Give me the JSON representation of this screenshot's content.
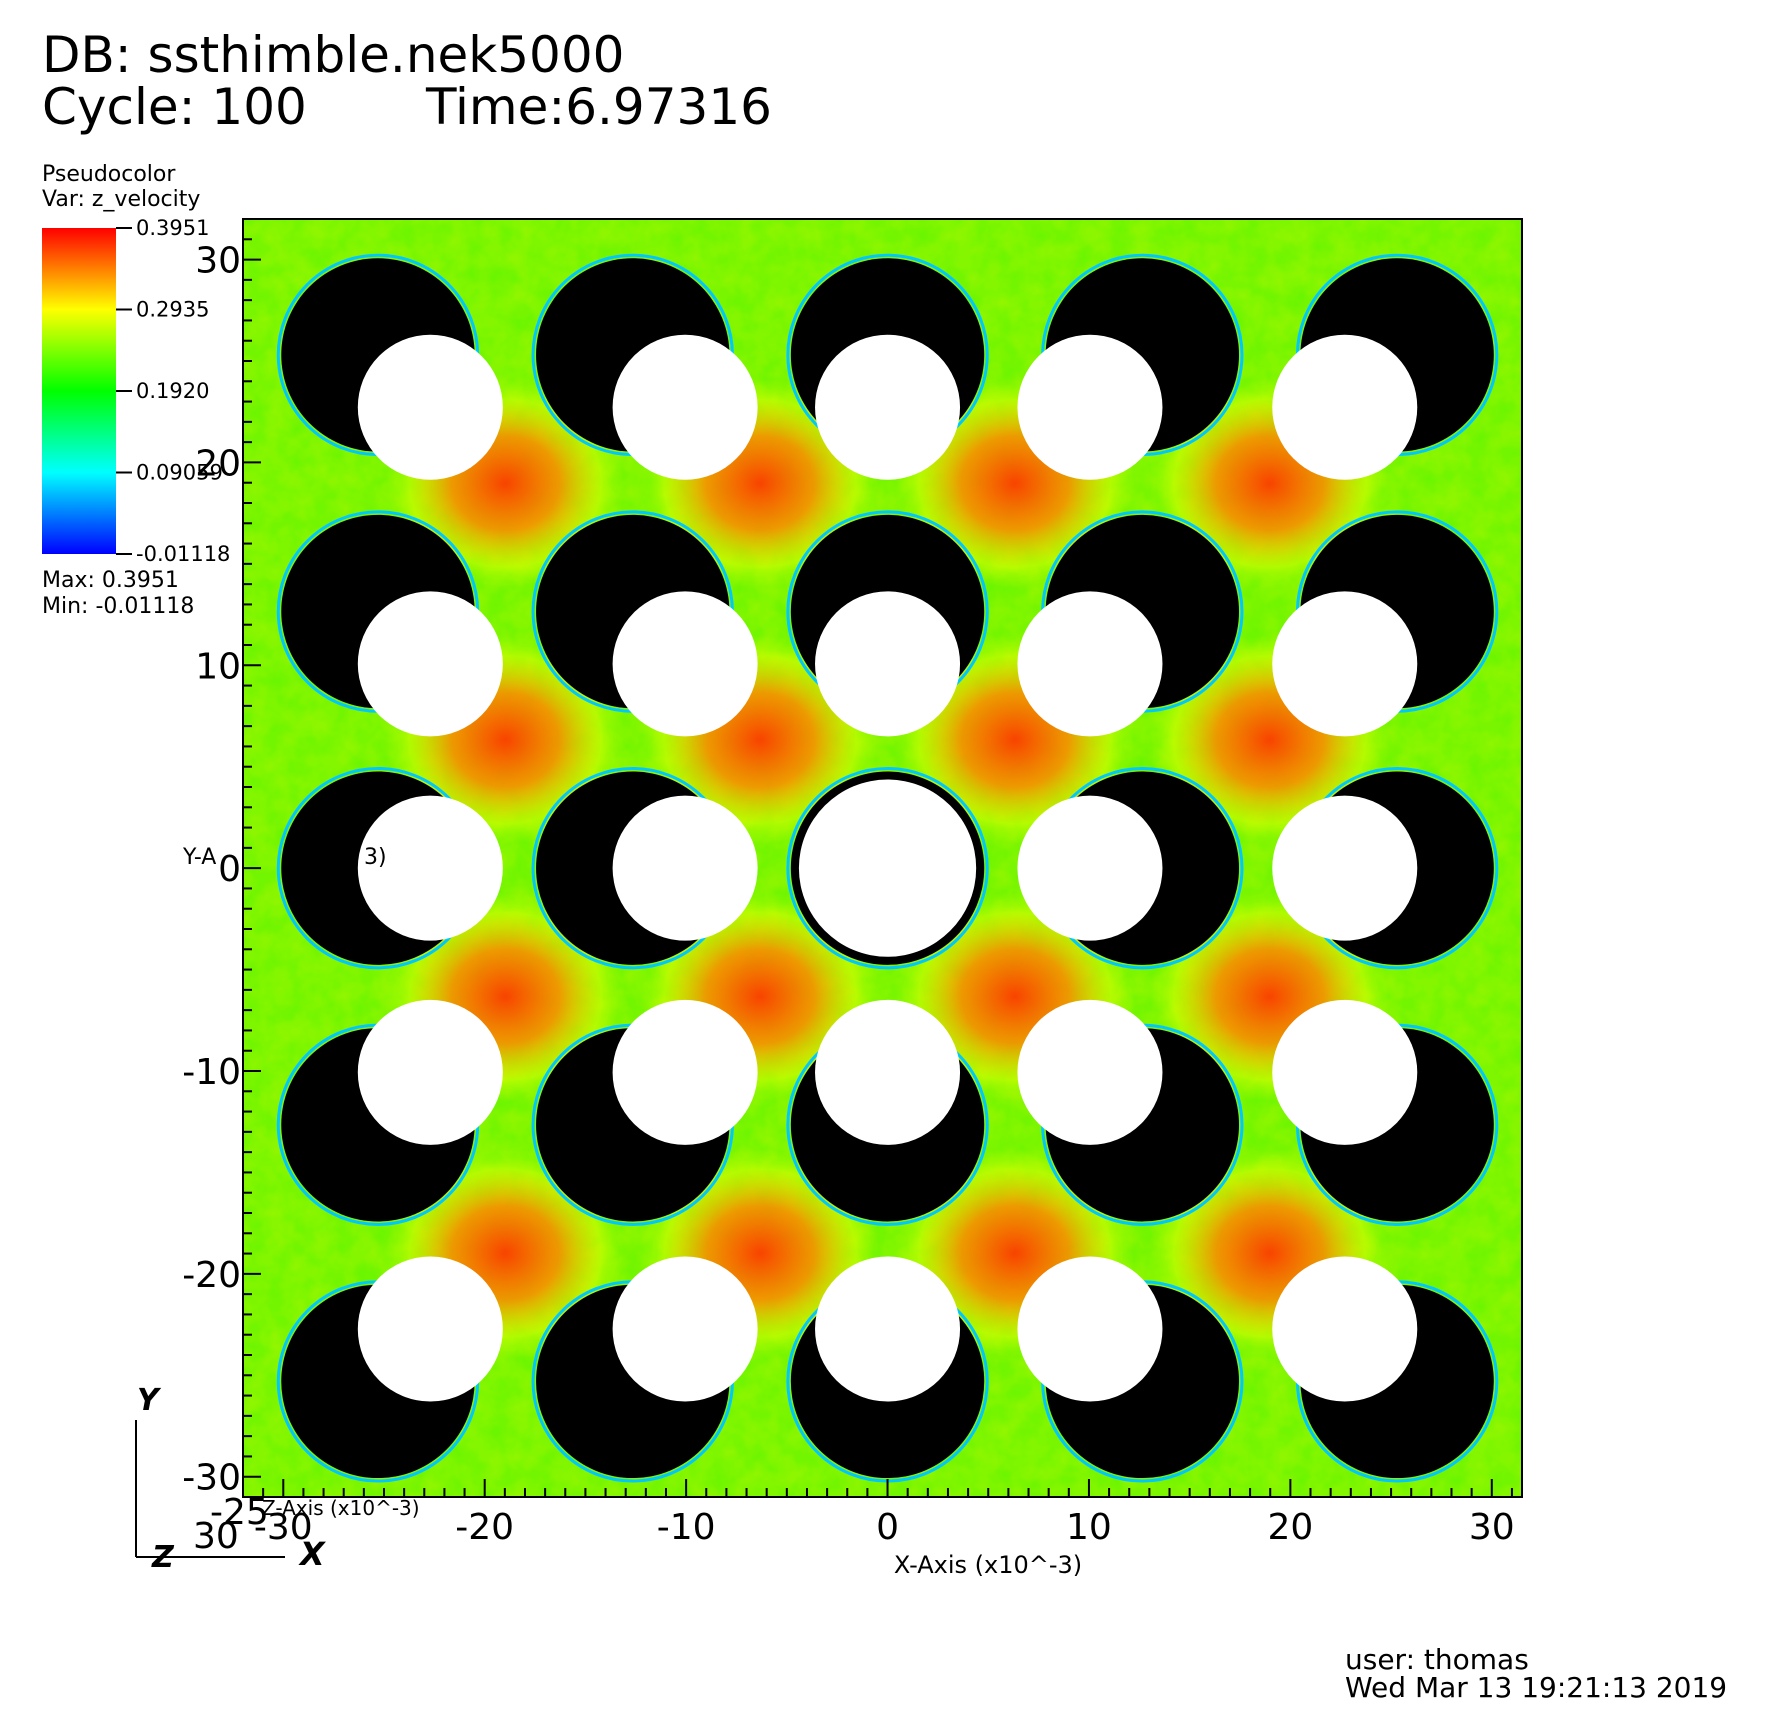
{
  "header": {
    "db": "DB: ssthimble.nek5000",
    "cycle": "Cycle: 100",
    "time": "Time:6.97316"
  },
  "legend": {
    "title": "Pseudocolor",
    "var": "Var: z_velocity",
    "max_text": "Max:  0.3951",
    "min_text": "Min: -0.01118",
    "ticks": [
      "0.3951",
      "0.2935",
      "0.1920",
      "0.09059",
      "-0.01118"
    ],
    "colors": [
      "#ff0000",
      "#ffff00",
      "#00ff00",
      "#00ffff",
      "#0000ff"
    ]
  },
  "footer": {
    "user": "user: thomas",
    "date": "Wed Mar 13 19:21:13 2019"
  },
  "triad": {
    "y": "Y",
    "x": "X",
    "z": "Z"
  },
  "chart_data": {
    "type": "heatmap",
    "title": "",
    "variable": "z_velocity",
    "xlabel": "X-Axis (x10^-3)",
    "ylabel": "Y-Axis (x10^-3)",
    "xlim": [
      -32,
      31.5
    ],
    "ylim": [
      -31,
      32
    ],
    "x_ticks": [
      "-30",
      "-20",
      "-10",
      "0",
      "10",
      "20",
      "30"
    ],
    "x_tick_values": [
      -30,
      -20,
      -10,
      0,
      10,
      20,
      30
    ],
    "y_ticks": [
      "30",
      "20",
      "10",
      "0",
      "-10",
      "-20",
      "-30"
    ],
    "y_tick_values": [
      30,
      20,
      10,
      0,
      -10,
      -20,
      -30
    ],
    "colorbar_range": [
      -0.01118,
      0.3951
    ],
    "rod_grid": {
      "centers_x": [
        -25.3,
        -12.65,
        0,
        12.65,
        25.3
      ],
      "centers_y": [
        25.3,
        12.65,
        0,
        -12.65,
        -25.3
      ],
      "rod_radius": 4.8,
      "inner_radius": 3.6,
      "center_rod_ring_radius": 4.4
    },
    "overlapping_labels": {
      "y_axis_title_fragment": "Y-A",
      "y_axis_title_tail": "3)",
      "z_axis_fragment": "Z-Axis (x10^-3)",
      "z_tick": "-25",
      "x_start_overlap": "30"
    }
  }
}
